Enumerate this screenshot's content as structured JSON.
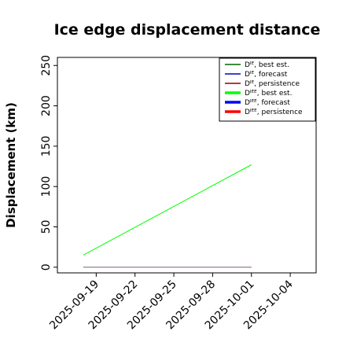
{
  "chart_data": {
    "type": "line",
    "title": "Ice edge displacement distance",
    "xlabel": "",
    "ylabel": "Displacement (km)",
    "x_range": [
      "2025-09-16",
      "2025-10-06"
    ],
    "ylim": [
      -7,
      260
    ],
    "y_ticks": [
      0,
      50,
      100,
      150,
      200,
      250
    ],
    "x_ticks": [
      {
        "date": "2025-09-19",
        "label": "2025-09-19",
        "color": "#000000"
      },
      {
        "date": "2025-09-22",
        "label": "2025-09-22",
        "color": "#000000"
      },
      {
        "date": "2025-09-25",
        "label": "2025-09-25",
        "color": "#228b22"
      },
      {
        "date": "2025-09-28",
        "label": "2025-09-28",
        "color": "#000000"
      },
      {
        "date": "2025-10-01",
        "label": "2025-10-01",
        "color": "#000000"
      },
      {
        "date": "2025-10-04",
        "label": "2025-10-04",
        "color": "#000000"
      }
    ],
    "grid": false,
    "legend_position": "top-right",
    "series": [
      {
        "name": "Dᴵᴱ, best est.",
        "color": "#006400",
        "style": "thin",
        "points": [
          {
            "x": "2025-09-18",
            "y": 0
          },
          {
            "x": "2025-10-01",
            "y": 0
          }
        ]
      },
      {
        "name": "Dᴵᴱ, forecast",
        "color": "#0000cd",
        "style": "thin",
        "points": [
          {
            "x": "2025-09-18",
            "y": 0
          },
          {
            "x": "2025-10-01",
            "y": 0
          }
        ]
      },
      {
        "name": "Dᴵᴱ, persistence",
        "color": "#8b0000",
        "style": "thin",
        "points": [
          {
            "x": "2025-09-18",
            "y": 0
          },
          {
            "x": "2025-10-01",
            "y": 0
          }
        ]
      },
      {
        "name": "Dᴵᴱᴱ, best est.",
        "color": "#00ff00",
        "style": "thick",
        "points": [
          {
            "x": "2025-09-18",
            "y": 15
          },
          {
            "x": "2025-10-01",
            "y": 127
          }
        ]
      },
      {
        "name": "Dᴵᴱᴱ, forecast",
        "color": "#0000ff",
        "style": "thick",
        "points": []
      },
      {
        "name": "Dᴵᴱᴱ, persistence",
        "color": "#ff0000",
        "style": "thick",
        "points": []
      }
    ]
  }
}
